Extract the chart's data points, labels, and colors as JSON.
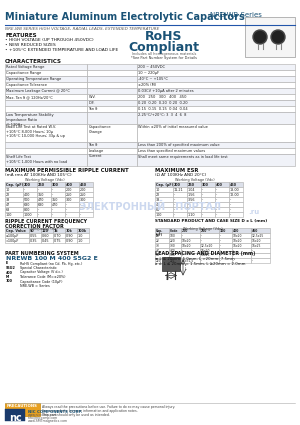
{
  "title": "Miniature Aluminum Electrolytic Capacitors",
  "series": "NRE-WB Series",
  "subtitle": "NRE-WB SERIES HIGH VOLTAGE, RADIAL LEADS, EXTENDED TEMPERATURE",
  "features_title": "FEATURES",
  "features": [
    "• HIGH VOLTAGE (UP THROUGH 450VDC)",
    "• NEW REDUCED SIZES",
    "• +105°C EXTENDED TEMPERATURE AND LOAD LIFE"
  ],
  "rohs_line1": "RoHS",
  "rohs_line2": "Compliant",
  "rohs_sub": "Includes all homogeneous materials",
  "rohs_sub2": "*See Part Number System for Details",
  "char_title": "CHARACTERISTICS",
  "ripple_title": "MAXIMUM PERMISSIBLE RIPPLE CURRENT",
  "ripple_subtitle": "(mA rms AT 100KHz AND 105°C)",
  "ripple_headers": [
    "Cap. (μF)",
    "Working Voltage (Vdc)",
    "",
    "",
    "",
    ""
  ],
  "ripple_vheaders": [
    "",
    "200",
    "250",
    "300",
    "400",
    "450"
  ],
  "ripple_rows": [
    [
      "10",
      "-",
      "-",
      "-",
      "200",
      "200"
    ],
    [
      "22",
      "400",
      "350",
      "-",
      "250",
      "250"
    ],
    [
      "33",
      "500",
      "470",
      "350",
      "300",
      "300"
    ],
    [
      "47",
      "630",
      "630",
      "470",
      "-",
      "-"
    ],
    [
      "68",
      "800",
      "-",
      "-",
      "-",
      "-"
    ],
    [
      "100",
      "1000",
      "-",
      "-",
      "-",
      "-"
    ]
  ],
  "esr_title": "MAXIMUM ESR",
  "esr_subtitle": "(Ω AT 100KHz AND 20°C)",
  "esr_vheaders": [
    "",
    "200",
    "250",
    "300",
    "400",
    "450"
  ],
  "esr_rows": [
    [
      "10",
      "11.21",
      "1.04",
      "-",
      "-",
      "18.00"
    ],
    [
      "22",
      "-",
      "1.56",
      "-",
      "-",
      "12.00"
    ],
    [
      "33",
      "-",
      "3.56",
      "-",
      "-",
      "-"
    ],
    [
      "47",
      "-",
      "-",
      "-",
      "-",
      "-"
    ],
    [
      "68",
      "-",
      "-",
      "-",
      "-",
      "-"
    ],
    [
      "100",
      "-",
      "1.10",
      "-",
      "-",
      "-"
    ]
  ],
  "rcf_title": "RIPPLE CURRENT FREQUENCY\nCORRECTION FACTOR",
  "rcf_vheaders": [
    "Cap. Value",
    "50",
    "120",
    "1k",
    "10k",
    "100k"
  ],
  "rcf_rows": [
    [
      "≤100μF",
      "0.55",
      "0.60",
      "0.70",
      "0.90",
      "1.0"
    ],
    [
      ">100μF",
      "0.35",
      "0.45",
      "0.75",
      "0.90",
      "1.0"
    ]
  ],
  "std_title": "STANDARD PRODUCT AND CASE SIZE D x L (mm)",
  "std_vheaders": [
    "Cap. (μF)",
    "Code",
    "200",
    "250",
    "300",
    "400",
    "450"
  ],
  "std_rows": [
    [
      "10",
      "100",
      "-",
      "-",
      "-",
      "10x20",
      "12.5x25"
    ],
    [
      "22",
      "220",
      "10x20",
      "-",
      "-",
      "10x20",
      "16x20"
    ],
    [
      "33",
      "330",
      "10x20",
      "12.5x20",
      "-",
      "16x20",
      "16x25"
    ],
    [
      "47",
      "470",
      "-",
      "16x20",
      "-",
      "-",
      "-"
    ],
    [
      "68",
      "680",
      "-",
      "16x25",
      "-",
      "-",
      "-"
    ],
    [
      "220",
      "221",
      "16x31.5",
      "-",
      "-",
      "-",
      "-"
    ]
  ],
  "pns_title": "PART NUMBERING SYSTEM",
  "pns_example": "NREWB 100 M 400 S5G2 E",
  "lead_title": "LEAD SPACING AND DIAMETER (mm)",
  "lead_line1": "≡ L ≤ 20mm: 5.0mm, L >20mm: 7.5mm",
  "lead_line2": "ø d: L ≤ 20mm = 1.5mm, L ≥20mm = 2.0mm",
  "bg_color": "#ffffff",
  "title_color": "#1a5276",
  "blue_dark": "#1a3a6b",
  "table_line": "#aaaaaa",
  "header_fill": "#dce0ea",
  "gray_fill": "#e8e8e8"
}
